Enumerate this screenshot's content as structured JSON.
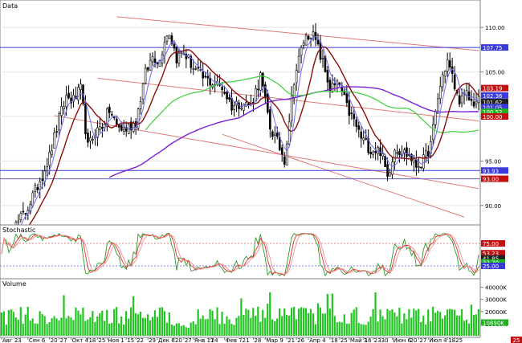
{
  "chart_data": {
    "type": "candlestick",
    "panels": {
      "price": {
        "label": "Data",
        "ylim": [
          88,
          112
        ],
        "yticks": [
          90,
          95,
          100,
          105,
          110
        ],
        "ytick_labels": [
          "90.00",
          "95.00",
          "100.00",
          "105.00",
          "110.00"
        ],
        "value_tags": [
          {
            "value": 107.75,
            "label": "107.75",
            "color": "#3a3ad8"
          },
          {
            "value": 103.19,
            "label": "103.19",
            "color": "#c01010"
          },
          {
            "value": 102.36,
            "label": "102.36",
            "color": "#3a3ad8"
          },
          {
            "value": 101.62,
            "label": "101.62",
            "color": "#202020"
          },
          {
            "value": 101.05,
            "label": "101.05",
            "color": "#3a3ad8"
          },
          {
            "value": 100.52,
            "label": "100.52",
            "color": "#20b020"
          },
          {
            "value": 100.0,
            "label": "100.00",
            "color": "#c01010"
          },
          {
            "value": 93.93,
            "label": "93.93",
            "color": "#3a3ad8"
          },
          {
            "value": 93.0,
            "label": "93.00",
            "color": "#c01010"
          }
        ],
        "horizontal_lines": [
          107.75,
          93.93,
          93.0
        ],
        "trend_lines": [
          {
            "from": [
              48,
              111.2
            ],
            "to": [
              199,
              107.4
            ]
          },
          {
            "from": [
              40,
              104.3
            ],
            "to": [
              199,
              99.5
            ]
          },
          {
            "from": [
              22,
              100.1
            ],
            "to": [
              199,
              91.9
            ]
          },
          {
            "from": [
              92,
              98.0
            ],
            "to": [
              193,
              88.7
            ]
          }
        ],
        "anchors": [
          [
            0,
            85.5
          ],
          [
            10,
            89.3
          ],
          [
            14,
            91.6
          ],
          [
            20,
            95.5
          ],
          [
            24,
            99.7
          ],
          [
            27,
            102.2
          ],
          [
            30,
            101.8
          ],
          [
            33,
            103.0
          ],
          [
            36,
            96.5
          ],
          [
            39,
            98.2
          ],
          [
            42,
            99.0
          ],
          [
            45,
            100.7
          ],
          [
            48,
            99.0
          ],
          [
            51,
            98.4
          ],
          [
            56,
            99.4
          ],
          [
            60,
            104.8
          ],
          [
            63,
            106.8
          ],
          [
            66,
            106.2
          ],
          [
            68,
            108.8
          ],
          [
            70,
            109.5
          ],
          [
            73,
            106.6
          ],
          [
            76,
            107.2
          ],
          [
            80,
            105.5
          ],
          [
            84,
            104.3
          ],
          [
            88,
            103.8
          ],
          [
            92,
            103.3
          ],
          [
            96,
            101.2
          ],
          [
            100,
            101.6
          ],
          [
            104,
            101.2
          ],
          [
            108,
            104.5
          ],
          [
            112,
            98.8
          ],
          [
            116,
            96.5
          ],
          [
            118,
            95.2
          ],
          [
            122,
            104.2
          ],
          [
            126,
            108.5
          ],
          [
            129,
            109.5
          ],
          [
            131,
            108.4
          ],
          [
            134,
            106.0
          ],
          [
            137,
            103.2
          ],
          [
            141,
            103.5
          ],
          [
            144,
            101.0
          ],
          [
            147,
            99.5
          ],
          [
            150,
            97.6
          ],
          [
            154,
            96.3
          ],
          [
            158,
            96.2
          ],
          [
            161,
            93.2
          ],
          [
            164,
            96.5
          ],
          [
            167,
            96.1
          ],
          [
            170,
            95.6
          ],
          [
            173,
            94.5
          ],
          [
            176,
            95.0
          ],
          [
            179,
            96.8
          ],
          [
            182,
            102.1
          ],
          [
            184,
            104.6
          ],
          [
            186,
            106.3
          ],
          [
            188,
            104.4
          ],
          [
            190,
            102.3
          ],
          [
            192,
            101.8
          ],
          [
            194,
            102.4
          ],
          [
            196,
            101.6
          ],
          [
            199,
            101.7
          ]
        ]
      },
      "stochastic": {
        "label": "Stochastic",
        "ylim": [
          0,
          100
        ],
        "value_tags": [
          {
            "value": 75.0,
            "label": "75.00",
            "color": "#c01010"
          },
          {
            "value": 53.23,
            "label": "53.23",
            "color": "#c01010"
          },
          {
            "value": 41.85,
            "label": "41.85",
            "color": "#202020"
          },
          {
            "value": 32.7,
            "label": "32.70",
            "color": "#20b020"
          },
          {
            "value": 25.0,
            "label": "25.00",
            "color": "#3a3ad8"
          }
        ],
        "levels": [
          75,
          25
        ]
      },
      "volume": {
        "label": "Volume",
        "ylim": [
          0,
          45000
        ],
        "ytick_labels": [
          "40000K",
          "30000K",
          "20000K",
          "10000K"
        ],
        "ytick_values": [
          40000,
          30000,
          20000,
          10000
        ],
        "value_tags": [
          {
            "value": 10890,
            "label": "10890K",
            "color": "#20b020"
          }
        ]
      }
    },
    "x_labels": [
      {
        "i": 0,
        "text": "Авг 23"
      },
      {
        "i": 11,
        "text": "Сен 6"
      },
      {
        "i": 20,
        "text": "20"
      },
      {
        "i": 24,
        "text": "27"
      },
      {
        "i": 29,
        "text": "Окт 4"
      },
      {
        "i": 36,
        "text": "18"
      },
      {
        "i": 40,
        "text": "25"
      },
      {
        "i": 44,
        "text": "Ноя 1"
      },
      {
        "i": 52,
        "text": "15"
      },
      {
        "i": 56,
        "text": "22"
      },
      {
        "i": 61,
        "text": "29"
      },
      {
        "i": 65,
        "text": "Дек 6"
      },
      {
        "i": 72,
        "text": "20"
      },
      {
        "i": 76,
        "text": "27"
      },
      {
        "i": 80,
        "text": "Янв 11"
      },
      {
        "i": 87,
        "text": "24"
      },
      {
        "i": 93,
        "text": "Фев 7"
      },
      {
        "i": 100,
        "text": "21"
      },
      {
        "i": 105,
        "text": "28"
      },
      {
        "i": 110,
        "text": "Мар 9"
      },
      {
        "i": 119,
        "text": "21"
      },
      {
        "i": 123,
        "text": "26"
      },
      {
        "i": 128,
        "text": "Апр 4"
      },
      {
        "i": 137,
        "text": "18"
      },
      {
        "i": 141,
        "text": "25"
      },
      {
        "i": 145,
        "text": "Май 3"
      },
      {
        "i": 151,
        "text": "16"
      },
      {
        "i": 155,
        "text": "23"
      },
      {
        "i": 158,
        "text": "30"
      },
      {
        "i": 163,
        "text": "Июн 6"
      },
      {
        "i": 170,
        "text": "20"
      },
      {
        "i": 174,
        "text": "27"
      },
      {
        "i": 178,
        "text": "Июл 4"
      },
      {
        "i": 186,
        "text": "18"
      },
      {
        "i": 189,
        "text": "25"
      }
    ],
    "right_marker": "25"
  }
}
